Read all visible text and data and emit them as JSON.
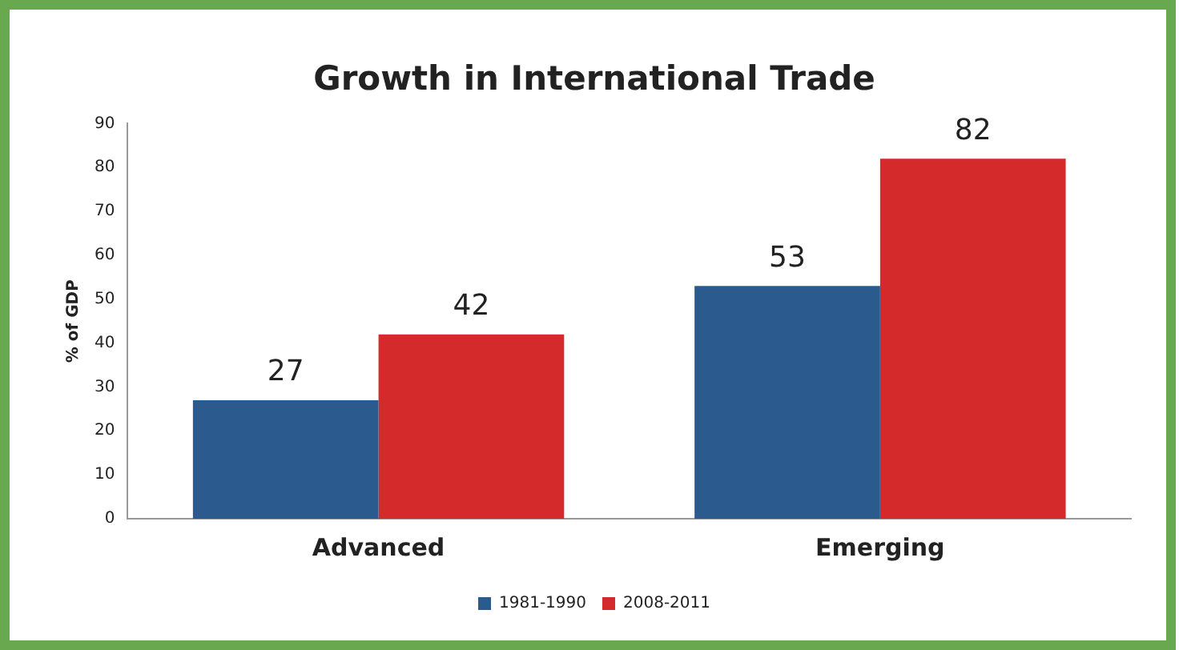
{
  "chart_data": {
    "type": "bar",
    "title": "Growth in International Trade",
    "ylabel": "% of GDP",
    "categories": [
      "Advanced",
      "Emerging"
    ],
    "series": [
      {
        "name": "1981-1990",
        "color": "#2b5b8e",
        "values": [
          27,
          53
        ]
      },
      {
        "name": "2008-2011",
        "color": "#d42a2c",
        "values": [
          42,
          82
        ]
      }
    ],
    "ylim": [
      0,
      90
    ],
    "yticks": [
      0,
      10,
      20,
      30,
      40,
      50,
      60,
      70,
      80,
      90
    ],
    "grid": false,
    "legend": "bottom",
    "data_labels": true
  }
}
